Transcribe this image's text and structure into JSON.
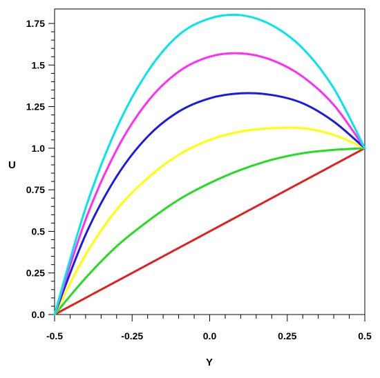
{
  "chart_data": {
    "type": "line",
    "title": "",
    "xlabel": "Y",
    "ylabel": "U",
    "xlim": [
      -0.5,
      0.5
    ],
    "ylim": [
      0,
      1.85
    ],
    "xticks": [
      -0.5,
      -0.25,
      0.0,
      0.25,
      0.5
    ],
    "xtick_labels": [
      "-0.5",
      "-0.25",
      "0.0",
      "0.25",
      "0.5"
    ],
    "yticks": [
      0,
      0.25,
      0.5,
      0.75,
      1.0,
      1.25,
      1.5,
      1.75
    ],
    "ytick_labels": [
      "0.0",
      "0.25",
      "0.5",
      "0.75",
      "1.0",
      "1.25",
      "1.5",
      "1.75"
    ],
    "grid": false,
    "series": [
      {
        "color": "#00e5ee",
        "x": [
          -0.5,
          -0.4,
          -0.3,
          -0.2,
          -0.1,
          0.0,
          0.1,
          0.2,
          0.3,
          0.4,
          0.5
        ],
        "values": [
          0.0,
          0.64,
          1.12,
          1.46,
          1.68,
          1.78,
          1.8,
          1.74,
          1.6,
          1.36,
          1.0
        ]
      },
      {
        "color": "#ff2df5",
        "x": [
          -0.5,
          -0.4,
          -0.3,
          -0.2,
          -0.1,
          0.0,
          0.1,
          0.2,
          0.3,
          0.4,
          0.5
        ],
        "values": [
          0.0,
          0.57,
          0.99,
          1.28,
          1.46,
          1.55,
          1.57,
          1.53,
          1.43,
          1.26,
          1.0
        ]
      },
      {
        "color": "#1a1ae6",
        "x": [
          -0.5,
          -0.4,
          -0.3,
          -0.2,
          -0.1,
          0.0,
          0.1,
          0.2,
          0.3,
          0.4,
          0.5
        ],
        "values": [
          0.0,
          0.48,
          0.83,
          1.07,
          1.22,
          1.3,
          1.33,
          1.32,
          1.27,
          1.16,
          1.0
        ]
      },
      {
        "color": "#ffff00",
        "x": [
          -0.5,
          -0.4,
          -0.3,
          -0.2,
          -0.1,
          0.0,
          0.1,
          0.2,
          0.3,
          0.4,
          0.5
        ],
        "values": [
          0.0,
          0.36,
          0.63,
          0.82,
          0.96,
          1.05,
          1.1,
          1.12,
          1.12,
          1.08,
          1.0
        ]
      },
      {
        "color": "#22dd22",
        "x": [
          -0.5,
          -0.4,
          -0.3,
          -0.2,
          -0.1,
          0.0,
          0.1,
          0.2,
          0.3,
          0.4,
          0.5
        ],
        "values": [
          0.0,
          0.22,
          0.41,
          0.56,
          0.69,
          0.79,
          0.87,
          0.93,
          0.97,
          0.99,
          1.0
        ]
      },
      {
        "color": "#e02020",
        "x": [
          -0.5,
          -0.4,
          -0.3,
          -0.2,
          -0.1,
          0.0,
          0.1,
          0.2,
          0.3,
          0.4,
          0.5
        ],
        "values": [
          0.0,
          0.1,
          0.2,
          0.3,
          0.4,
          0.5,
          0.6,
          0.7,
          0.8,
          0.9,
          1.0
        ]
      }
    ]
  }
}
